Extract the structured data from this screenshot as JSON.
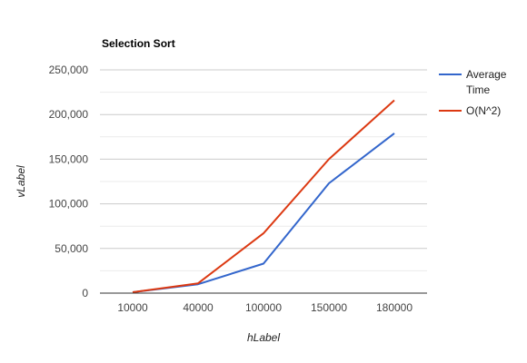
{
  "chart_data": {
    "type": "line",
    "title": "Selection Sort",
    "xlabel": "hLabel",
    "ylabel": "vLabel",
    "categories": [
      "10000",
      "40000",
      "100000",
      "150000",
      "180000"
    ],
    "series": [
      {
        "name": "Average Time",
        "name_lines": [
          "Average",
          "Time"
        ],
        "color": "#3366cc",
        "values": [
          1000,
          10000,
          33000,
          123000,
          179000
        ]
      },
      {
        "name": "O(N^2)",
        "name_lines": [
          "O(N^2)"
        ],
        "color": "#dc3912",
        "values": [
          1000,
          11000,
          67000,
          150000,
          216000
        ]
      }
    ],
    "ylim": [
      0,
      250000
    ],
    "yticks": [
      {
        "value": 0,
        "label": "0"
      },
      {
        "value": 50000,
        "label": "50,000"
      },
      {
        "value": 100000,
        "label": "100,000"
      },
      {
        "value": 150000,
        "label": "150,000"
      },
      {
        "value": 200000,
        "label": "200,000"
      },
      {
        "value": 250000,
        "label": "250,000"
      }
    ],
    "grid": true,
    "legend": "right",
    "colors": {
      "grid": "#cccccc",
      "minor_grid": "#ebebeb",
      "axis": "#333333"
    }
  }
}
